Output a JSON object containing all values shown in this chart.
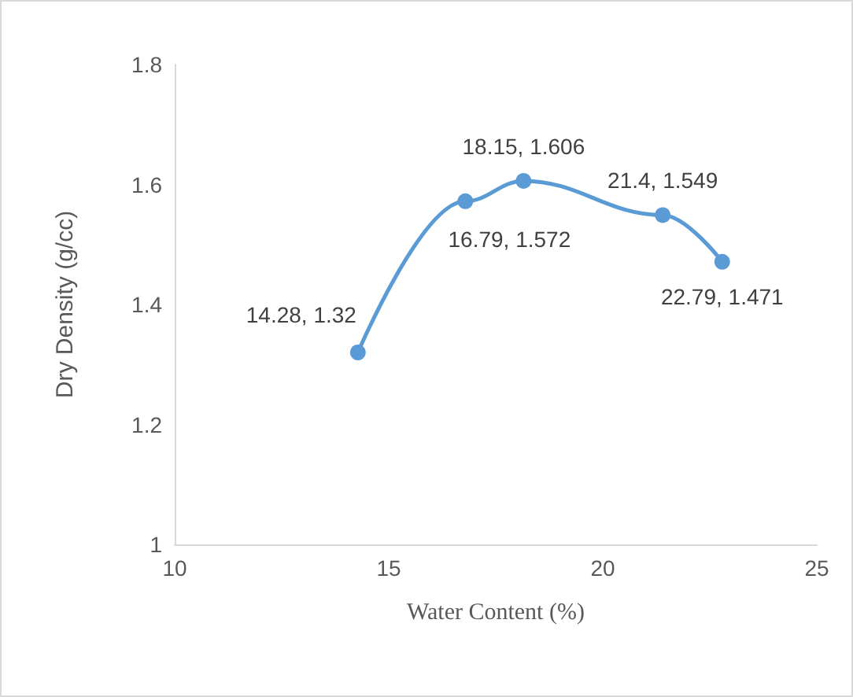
{
  "chart_data": {
    "type": "line",
    "xlabel": "Water Content (%)",
    "ylabel": "Dry Density (g/cc)",
    "x": [
      14.28,
      16.79,
      18.15,
      21.4,
      22.79
    ],
    "series": [
      {
        "color": "#5b9bd5",
        "values": [
          1.32,
          1.572,
          1.606,
          1.549,
          1.471
        ],
        "value_labels": [
          "14.28, 1.32",
          "16.79, 1.572",
          "18.15, 1.606",
          "21.4, 1.549",
          "22.79, 1.471"
        ]
      }
    ],
    "xlim": [
      10,
      25
    ],
    "xticks": [
      10,
      15,
      20,
      25
    ],
    "ylim": [
      1,
      1.8
    ],
    "yticks": [
      1,
      1.2,
      1.4,
      1.6,
      1.8
    ],
    "grid": false,
    "marker": "circle",
    "line_style": "solid"
  }
}
